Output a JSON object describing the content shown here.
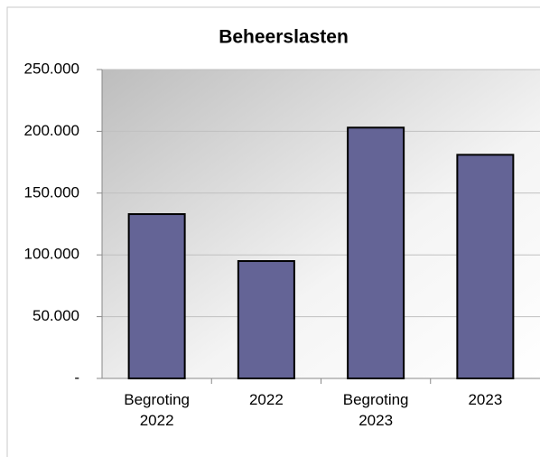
{
  "chart_data": {
    "type": "bar",
    "title": "Beheerslasten",
    "categories": [
      "Begroting 2022",
      "2022",
      "Begroting 2023",
      "2023"
    ],
    "values": [
      133000,
      95000,
      203000,
      181000
    ],
    "color": "#646496",
    "ylim": [
      0,
      250000
    ],
    "yticks": [
      {
        "value": 0,
        "label": "-"
      },
      {
        "value": 50000,
        "label": "50.000"
      },
      {
        "value": 100000,
        "label": "100.000"
      },
      {
        "value": 150000,
        "label": "150.000"
      },
      {
        "value": 200000,
        "label": "200.000"
      },
      {
        "value": 250000,
        "label": "250.000"
      }
    ],
    "grid": true
  }
}
